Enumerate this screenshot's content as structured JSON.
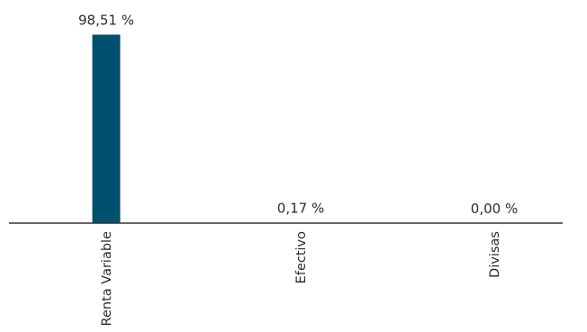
{
  "chart_data": {
    "type": "bar",
    "categories": [
      "Renta Variable",
      "Efectivo",
      "Divisas"
    ],
    "values": [
      98.51,
      0.17,
      0.0
    ],
    "value_labels": [
      "98,51 %",
      "0,17 %",
      "0,00 %"
    ],
    "ylim": [
      0,
      100
    ],
    "grid": false,
    "legend": "none",
    "bar_color": "#00506e",
    "axis_color": "#333333"
  }
}
